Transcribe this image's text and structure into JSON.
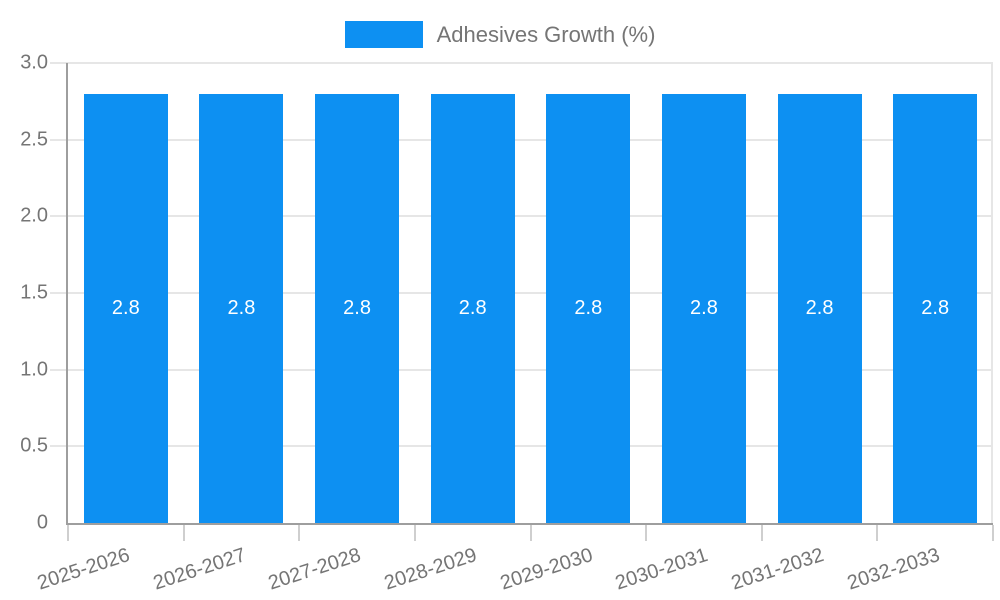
{
  "chart_data": {
    "type": "bar",
    "title": "",
    "legend": {
      "label": "Adhesives Growth (%)",
      "position": "top"
    },
    "categories": [
      "2025-2026",
      "2026-2027",
      "2027-2028",
      "2028-2029",
      "2029-2030",
      "2030-2031",
      "2031-2032",
      "2032-2033"
    ],
    "series": [
      {
        "name": "Adhesives Growth (%)",
        "values": [
          2.8,
          2.8,
          2.8,
          2.8,
          2.8,
          2.8,
          2.8,
          2.8
        ]
      }
    ],
    "bar_value_labels": [
      "2.8",
      "2.8",
      "2.8",
      "2.8",
      "2.8",
      "2.8",
      "2.8",
      "2.8"
    ],
    "xlabel": "",
    "ylabel": "",
    "ylim": [
      0,
      3
    ],
    "yticks": [
      {
        "value": 0,
        "label": "0"
      },
      {
        "value": 0.5,
        "label": "0.5"
      },
      {
        "value": 1,
        "label": "1.0"
      },
      {
        "value": 1.5,
        "label": "1.5"
      },
      {
        "value": 2,
        "label": "2.0"
      },
      {
        "value": 2.5,
        "label": "2.5"
      },
      {
        "value": 3,
        "label": "3.0"
      }
    ],
    "grid": true,
    "colors": {
      "bar": "#0d90f2",
      "grid": "#e6e6e6",
      "axis": "#9e9e9e",
      "text": "#757575",
      "bar_label": "#ffffff",
      "background": "#ffffff"
    }
  }
}
